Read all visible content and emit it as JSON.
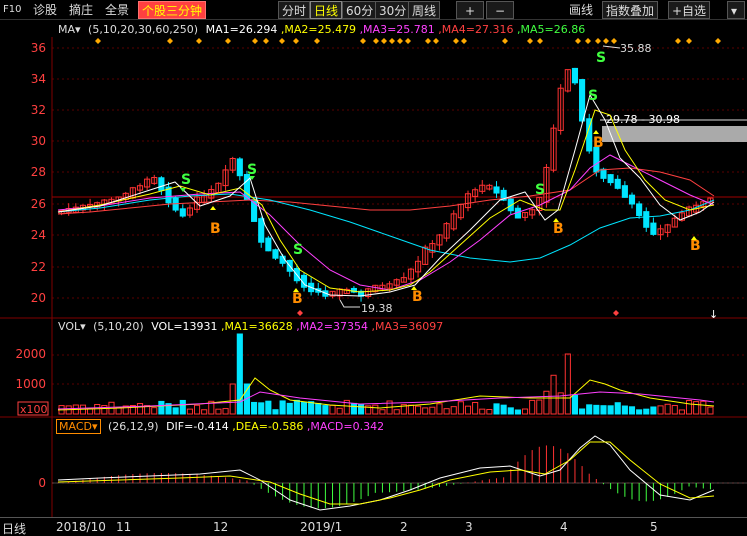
{
  "toolbar": {
    "f10": "F10",
    "diagnose": "诊股",
    "fold": "摘庄",
    "panorama": "全景",
    "stock_3min": "个股三分钟",
    "timeshare": "分时",
    "daily": "日线",
    "min60": "60分",
    "min30": "30分",
    "weekly": "周线",
    "draw_line": "画线",
    "index_overlay": "指数叠加",
    "add_watch": "+自选"
  },
  "ma_legend": {
    "name": "MA▾",
    "params": "(5,10,20,30,60,250)",
    "ma1": "MA1=26.294",
    "ma2": ",MA2=25.479",
    "ma3": ",MA3=25.781",
    "ma4": ",MA4=27.316",
    "ma5": ",MA5=26.86"
  },
  "vol_legend": {
    "name": "VOL▾",
    "params": "(5,10,20)",
    "vol": "VOL=13931",
    "ma1": ",MA1=36628",
    "ma2": ",MA2=37354",
    "ma3": ",MA3=36097"
  },
  "macd_legend": {
    "name": "MACD▾",
    "params": "(26,12,9)",
    "dif": "DIF=-0.414",
    "dea": ",DEA=-0.586",
    "macd": ",MACD=0.342"
  },
  "price_axis": [
    "36",
    "34",
    "32",
    "30",
    "28",
    "26",
    "24",
    "22",
    "20"
  ],
  "vol_axis": [
    "2000",
    "1000",
    "x100"
  ],
  "macd_axis": [
    "0"
  ],
  "annotations": {
    "high": "35.88",
    "low": "19.38",
    "range": "29.78 - 30.98"
  },
  "bottom": {
    "period": "日线",
    "dates": [
      "2018/10",
      "11",
      "12",
      "2019/1",
      "2",
      "3",
      "4",
      "5"
    ]
  },
  "colors": {
    "up": "#ff3232",
    "down": "#00e5ff",
    "ma1": "#ffffff",
    "ma2": "#ffff00",
    "ma3": "#ff40ff",
    "ma4": "#ff4040",
    "ma5": "#40ff40"
  }
}
